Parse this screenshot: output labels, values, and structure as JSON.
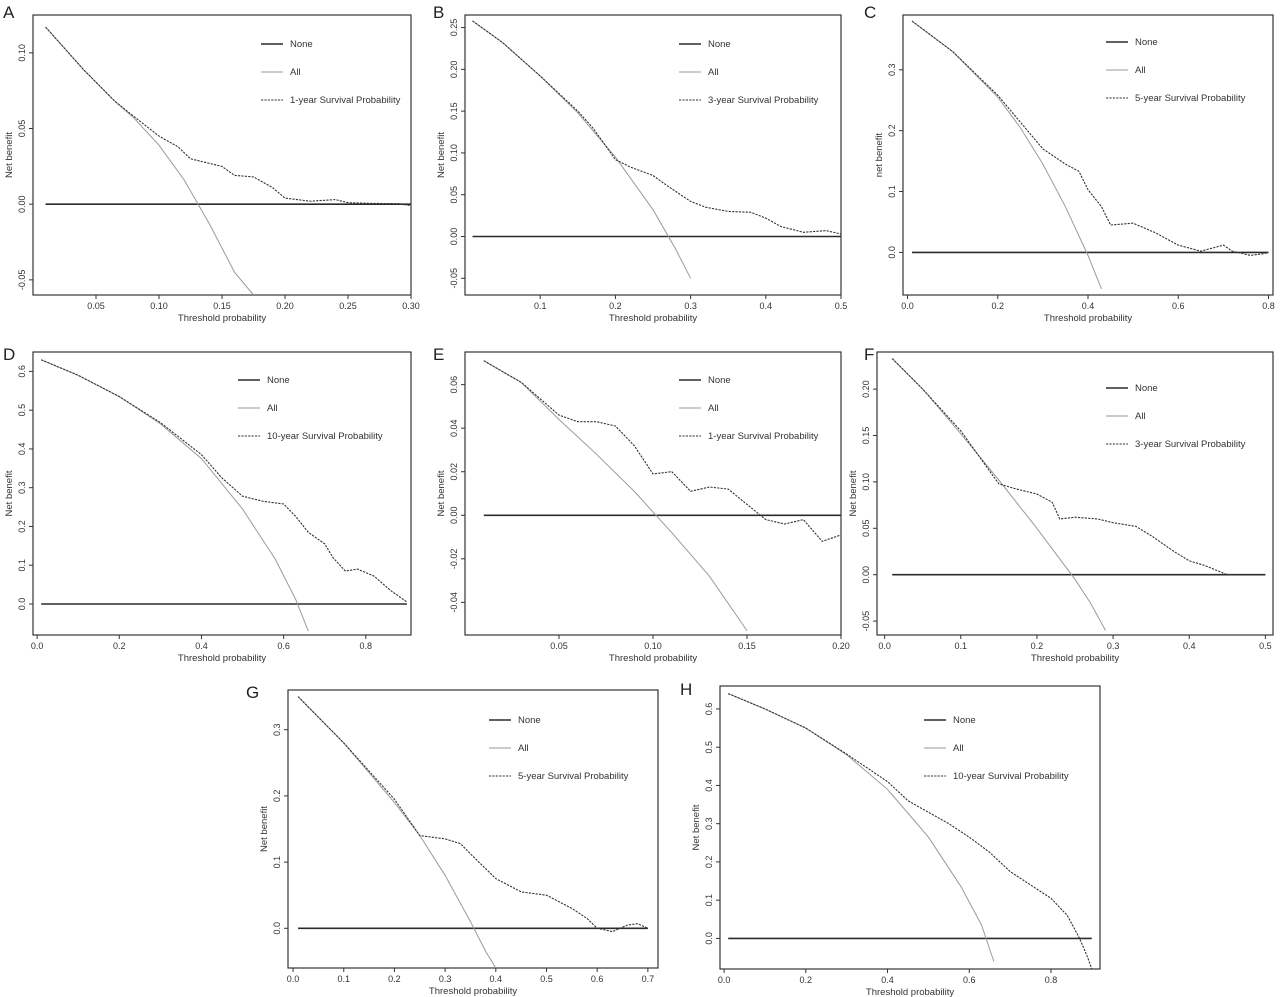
{
  "chart_data": [
    {
      "panel": "A",
      "type": "line",
      "xlabel": "Threshold probability",
      "ylabel": "Net benefit",
      "xlim": [
        0.0,
        0.3
      ],
      "ylim": [
        -0.06,
        0.125
      ],
      "xticks": [
        0.05,
        0.1,
        0.15,
        0.2,
        0.25,
        0.3
      ],
      "xticklabels": [
        "0.05",
        "0.10",
        "0.15",
        "0.20",
        "0.25",
        "0.30"
      ],
      "yticks": [
        -0.05,
        0.0,
        0.05,
        0.1
      ],
      "yticklabels": [
        "-0.05",
        "0.00",
        "0.05",
        "0.10"
      ],
      "legend": [
        "None",
        "All",
        "1-year Survival Probability"
      ],
      "series": [
        {
          "name": "None",
          "x": [
            0.01,
            0.3
          ],
          "y": [
            0.0,
            0.0
          ]
        },
        {
          "name": "All",
          "x": [
            0.01,
            0.04,
            0.065,
            0.08,
            0.1,
            0.12,
            0.14,
            0.16,
            0.175
          ],
          "y": [
            0.117,
            0.089,
            0.068,
            0.057,
            0.039,
            0.016,
            -0.013,
            -0.045,
            -0.06
          ]
        },
        {
          "name": "1-year Survival Probability",
          "x": [
            0.01,
            0.04,
            0.065,
            0.08,
            0.1,
            0.115,
            0.125,
            0.135,
            0.15,
            0.16,
            0.175,
            0.19,
            0.2,
            0.22,
            0.24,
            0.25,
            0.27,
            0.29,
            0.3
          ],
          "y": [
            0.117,
            0.089,
            0.068,
            0.058,
            0.045,
            0.038,
            0.03,
            0.028,
            0.025,
            0.019,
            0.018,
            0.011,
            0.004,
            0.002,
            0.003,
            0.001,
            0.0005,
            0.0003,
            -0.001
          ]
        }
      ]
    },
    {
      "panel": "B",
      "type": "line",
      "xlabel": "Threshold probability",
      "ylabel": "Net benefit",
      "xlim": [
        0.0,
        0.5
      ],
      "ylim": [
        -0.07,
        0.265
      ],
      "xticks": [
        0.1,
        0.2,
        0.3,
        0.4,
        0.5
      ],
      "xticklabels": [
        "0.1",
        "0.2",
        "0.3",
        "0.4",
        "0.5"
      ],
      "yticks": [
        -0.05,
        0.0,
        0.05,
        0.1,
        0.15,
        0.2,
        0.25
      ],
      "yticklabels": [
        "-0.05",
        "0.00",
        "0.05",
        "0.10",
        "0.15",
        "0.20",
        "0.25"
      ],
      "legend": [
        "None",
        "All",
        "3-year Survival Probability"
      ],
      "series": [
        {
          "name": "None",
          "x": [
            0.01,
            0.5
          ],
          "y": [
            0.0,
            0.0
          ]
        },
        {
          "name": "All",
          "x": [
            0.01,
            0.05,
            0.1,
            0.15,
            0.2,
            0.25,
            0.28,
            0.3
          ],
          "y": [
            0.258,
            0.232,
            0.192,
            0.148,
            0.095,
            0.032,
            -0.015,
            -0.05
          ]
        },
        {
          "name": "3-year Survival Probability",
          "x": [
            0.01,
            0.05,
            0.1,
            0.15,
            0.17,
            0.2,
            0.22,
            0.25,
            0.27,
            0.3,
            0.32,
            0.35,
            0.38,
            0.4,
            0.42,
            0.45,
            0.48,
            0.5
          ],
          "y": [
            0.258,
            0.232,
            0.192,
            0.15,
            0.13,
            0.092,
            0.083,
            0.073,
            0.06,
            0.042,
            0.035,
            0.03,
            0.029,
            0.022,
            0.012,
            0.005,
            0.007,
            0.003
          ]
        }
      ]
    },
    {
      "panel": "C",
      "type": "line",
      "xlabel": "Threshold probability",
      "ylabel": "net benefit",
      "xlim": [
        -0.01,
        0.81
      ],
      "ylim": [
        -0.07,
        0.39
      ],
      "xticks": [
        0.0,
        0.2,
        0.4,
        0.6,
        0.8
      ],
      "xticklabels": [
        "0.0",
        "0.2",
        "0.4",
        "0.6",
        "0.8"
      ],
      "yticks": [
        0.0,
        0.1,
        0.2,
        0.3
      ],
      "yticklabels": [
        "0.0",
        "0.1",
        "0.2",
        "0.3"
      ],
      "legend": [
        "None",
        "All",
        "5-year Survival Probability"
      ],
      "series": [
        {
          "name": "None",
          "x": [
            0.01,
            0.8
          ],
          "y": [
            0.0,
            0.0
          ]
        },
        {
          "name": "All",
          "x": [
            0.01,
            0.1,
            0.2,
            0.25,
            0.3,
            0.35,
            0.4,
            0.43
          ],
          "y": [
            0.38,
            0.33,
            0.255,
            0.205,
            0.145,
            0.075,
            -0.005,
            -0.06
          ]
        },
        {
          "name": "5-year Survival Probability",
          "x": [
            0.01,
            0.1,
            0.2,
            0.25,
            0.3,
            0.35,
            0.38,
            0.4,
            0.43,
            0.45,
            0.5,
            0.55,
            0.6,
            0.65,
            0.7,
            0.72,
            0.76,
            0.79,
            0.8
          ],
          "y": [
            0.38,
            0.33,
            0.258,
            0.214,
            0.17,
            0.145,
            0.133,
            0.103,
            0.075,
            0.045,
            0.048,
            0.032,
            0.012,
            0.002,
            0.012,
            0.002,
            -0.005,
            -0.002,
            0.0
          ]
        }
      ]
    },
    {
      "panel": "D",
      "type": "line",
      "xlabel": "Threshold probability",
      "ylabel": "Net benefit",
      "xlim": [
        -0.01,
        0.91
      ],
      "ylim": [
        -0.08,
        0.65
      ],
      "xticks": [
        0.0,
        0.2,
        0.4,
        0.6,
        0.8
      ],
      "xticklabels": [
        "0.0",
        "0.2",
        "0.4",
        "0.6",
        "0.8"
      ],
      "yticks": [
        0.0,
        0.1,
        0.2,
        0.3,
        0.4,
        0.5,
        0.6
      ],
      "yticklabels": [
        "0.0",
        "0.1",
        "0.2",
        "0.3",
        "0.4",
        "0.5",
        "0.6"
      ],
      "legend": [
        "None",
        "All",
        "10-year Survival Probability"
      ],
      "series": [
        {
          "name": "None",
          "x": [
            0.01,
            0.9
          ],
          "y": [
            0.0,
            0.0
          ]
        },
        {
          "name": "All",
          "x": [
            0.01,
            0.1,
            0.2,
            0.3,
            0.4,
            0.5,
            0.58,
            0.63,
            0.66
          ],
          "y": [
            0.63,
            0.59,
            0.535,
            0.465,
            0.375,
            0.245,
            0.115,
            0.01,
            -0.07
          ]
        },
        {
          "name": "10-year Survival Probability",
          "x": [
            0.01,
            0.1,
            0.2,
            0.3,
            0.4,
            0.45,
            0.5,
            0.55,
            0.6,
            0.63,
            0.66,
            0.7,
            0.72,
            0.75,
            0.78,
            0.82,
            0.86,
            0.9
          ],
          "y": [
            0.63,
            0.59,
            0.535,
            0.468,
            0.385,
            0.325,
            0.278,
            0.265,
            0.258,
            0.225,
            0.185,
            0.155,
            0.12,
            0.085,
            0.09,
            0.072,
            0.035,
            0.005
          ]
        }
      ]
    },
    {
      "panel": "E",
      "type": "line",
      "xlabel": "Threshold probability",
      "ylabel": "Net benefit",
      "xlim": [
        0.0,
        0.2
      ],
      "ylim": [
        -0.055,
        0.075
      ],
      "xticks": [
        0.05,
        0.1,
        0.15,
        0.2
      ],
      "xticklabels": [
        "0.05",
        "0.10",
        "0.15",
        "0.20"
      ],
      "yticks": [
        -0.04,
        -0.02,
        0.0,
        0.02,
        0.04,
        0.06
      ],
      "yticklabels": [
        "-0.04",
        "-0.02",
        "0.00",
        "0.02",
        "0.04",
        "0.06"
      ],
      "legend": [
        "None",
        "All",
        "1-year Survival Probability"
      ],
      "series": [
        {
          "name": "None",
          "x": [
            0.01,
            0.2
          ],
          "y": [
            0.0,
            0.0
          ]
        },
        {
          "name": "All",
          "x": [
            0.01,
            0.03,
            0.05,
            0.07,
            0.09,
            0.11,
            0.13,
            0.15
          ],
          "y": [
            0.071,
            0.061,
            0.044,
            0.028,
            0.011,
            -0.008,
            -0.028,
            -0.053
          ]
        },
        {
          "name": "1-year Survival Probability",
          "x": [
            0.01,
            0.03,
            0.05,
            0.06,
            0.07,
            0.08,
            0.09,
            0.1,
            0.11,
            0.12,
            0.13,
            0.14,
            0.15,
            0.16,
            0.17,
            0.18,
            0.19,
            0.2
          ],
          "y": [
            0.071,
            0.061,
            0.046,
            0.043,
            0.043,
            0.041,
            0.032,
            0.019,
            0.02,
            0.011,
            0.013,
            0.012,
            0.005,
            -0.002,
            -0.004,
            -0.002,
            -0.012,
            -0.009
          ]
        }
      ]
    },
    {
      "panel": "F",
      "type": "line",
      "xlabel": "Threshold probability",
      "ylabel": "Net benefit",
      "xlim": [
        -0.01,
        0.51
      ],
      "ylim": [
        -0.065,
        0.24
      ],
      "xticks": [
        0.0,
        0.1,
        0.2,
        0.3,
        0.4,
        0.5
      ],
      "xticklabels": [
        "0.0",
        "0.1",
        "0.2",
        "0.3",
        "0.4",
        "0.5"
      ],
      "yticks": [
        -0.05,
        0.0,
        0.05,
        0.1,
        0.15,
        0.2
      ],
      "yticklabels": [
        "-0.05",
        "0.00",
        "0.05",
        "0.10",
        "0.15",
        "0.20"
      ],
      "legend": [
        "None",
        "All",
        "3-year Survival Probability"
      ],
      "series": [
        {
          "name": "None",
          "x": [
            0.01,
            0.5
          ],
          "y": [
            0.0,
            0.0
          ]
        },
        {
          "name": "All",
          "x": [
            0.01,
            0.05,
            0.1,
            0.15,
            0.2,
            0.25,
            0.27,
            0.29
          ],
          "y": [
            0.233,
            0.2,
            0.152,
            0.102,
            0.05,
            -0.005,
            -0.03,
            -0.06
          ]
        },
        {
          "name": "3-year Survival Probability",
          "x": [
            0.01,
            0.05,
            0.1,
            0.15,
            0.17,
            0.2,
            0.22,
            0.23,
            0.25,
            0.28,
            0.3,
            0.33,
            0.35,
            0.38,
            0.4,
            0.42,
            0.45,
            0.48,
            0.5
          ],
          "y": [
            0.233,
            0.2,
            0.155,
            0.098,
            0.093,
            0.087,
            0.078,
            0.06,
            0.062,
            0.06,
            0.056,
            0.052,
            0.042,
            0.025,
            0.015,
            0.01,
            0.0,
            0.0,
            0.0
          ]
        }
      ]
    },
    {
      "panel": "G",
      "type": "line",
      "xlabel": "Threshold probability",
      "ylabel": "Net benefit",
      "xlim": [
        -0.01,
        0.72
      ],
      "ylim": [
        -0.06,
        0.36
      ],
      "xticks": [
        0.0,
        0.1,
        0.2,
        0.3,
        0.4,
        0.5,
        0.6,
        0.7
      ],
      "xticklabels": [
        "0.0",
        "0.1",
        "0.2",
        "0.3",
        "0.4",
        "0.5",
        "0.6",
        "0.7"
      ],
      "yticks": [
        0.0,
        0.1,
        0.2,
        0.3
      ],
      "yticklabels": [
        "0.0",
        "0.1",
        "0.2",
        "0.3"
      ],
      "legend": [
        "None",
        "All",
        "5-year Survival Probability"
      ],
      "series": [
        {
          "name": "None",
          "x": [
            0.01,
            0.7
          ],
          "y": [
            0.0,
            0.0
          ]
        },
        {
          "name": "All",
          "x": [
            0.01,
            0.1,
            0.2,
            0.25,
            0.3,
            0.35,
            0.38,
            0.4
          ],
          "y": [
            0.35,
            0.28,
            0.19,
            0.14,
            0.08,
            0.01,
            -0.035,
            -0.06
          ]
        },
        {
          "name": "5-year Survival Probability",
          "x": [
            0.01,
            0.1,
            0.2,
            0.25,
            0.3,
            0.33,
            0.36,
            0.4,
            0.45,
            0.5,
            0.55,
            0.58,
            0.6,
            0.63,
            0.66,
            0.68,
            0.7
          ],
          "y": [
            0.35,
            0.28,
            0.195,
            0.14,
            0.135,
            0.128,
            0.105,
            0.075,
            0.055,
            0.05,
            0.03,
            0.015,
            0.0,
            -0.005,
            0.005,
            0.007,
            0.0
          ]
        }
      ]
    },
    {
      "panel": "H",
      "type": "line",
      "xlabel": "Threshold probability",
      "ylabel": "Net benefit",
      "xlim": [
        -0.01,
        0.92
      ],
      "ylim": [
        -0.08,
        0.66
      ],
      "xticks": [
        0.0,
        0.2,
        0.4,
        0.6,
        0.8
      ],
      "xticklabels": [
        "0.0",
        "0.2",
        "0.4",
        "0.6",
        "0.8"
      ],
      "yticks": [
        0.0,
        0.1,
        0.2,
        0.3,
        0.4,
        0.5,
        0.6
      ],
      "yticklabels": [
        "0.0",
        "0.1",
        "0.2",
        "0.3",
        "0.4",
        "0.5",
        "0.6"
      ],
      "legend": [
        "None",
        "All",
        "10-year Survival Probability"
      ],
      "series": [
        {
          "name": "None",
          "x": [
            0.01,
            0.9
          ],
          "y": [
            0.0,
            0.0
          ]
        },
        {
          "name": "All",
          "x": [
            0.01,
            0.1,
            0.2,
            0.3,
            0.4,
            0.5,
            0.58,
            0.63,
            0.66
          ],
          "y": [
            0.64,
            0.6,
            0.55,
            0.48,
            0.39,
            0.265,
            0.135,
            0.035,
            -0.06
          ]
        },
        {
          "name": "10-year Survival Probability",
          "x": [
            0.01,
            0.1,
            0.2,
            0.3,
            0.4,
            0.45,
            0.5,
            0.55,
            0.6,
            0.65,
            0.7,
            0.75,
            0.8,
            0.84,
            0.87,
            0.89,
            0.9
          ],
          "y": [
            0.64,
            0.6,
            0.55,
            0.482,
            0.41,
            0.36,
            0.33,
            0.3,
            0.265,
            0.225,
            0.175,
            0.14,
            0.105,
            0.06,
            0.0,
            -0.05,
            -0.08
          ]
        }
      ]
    }
  ]
}
